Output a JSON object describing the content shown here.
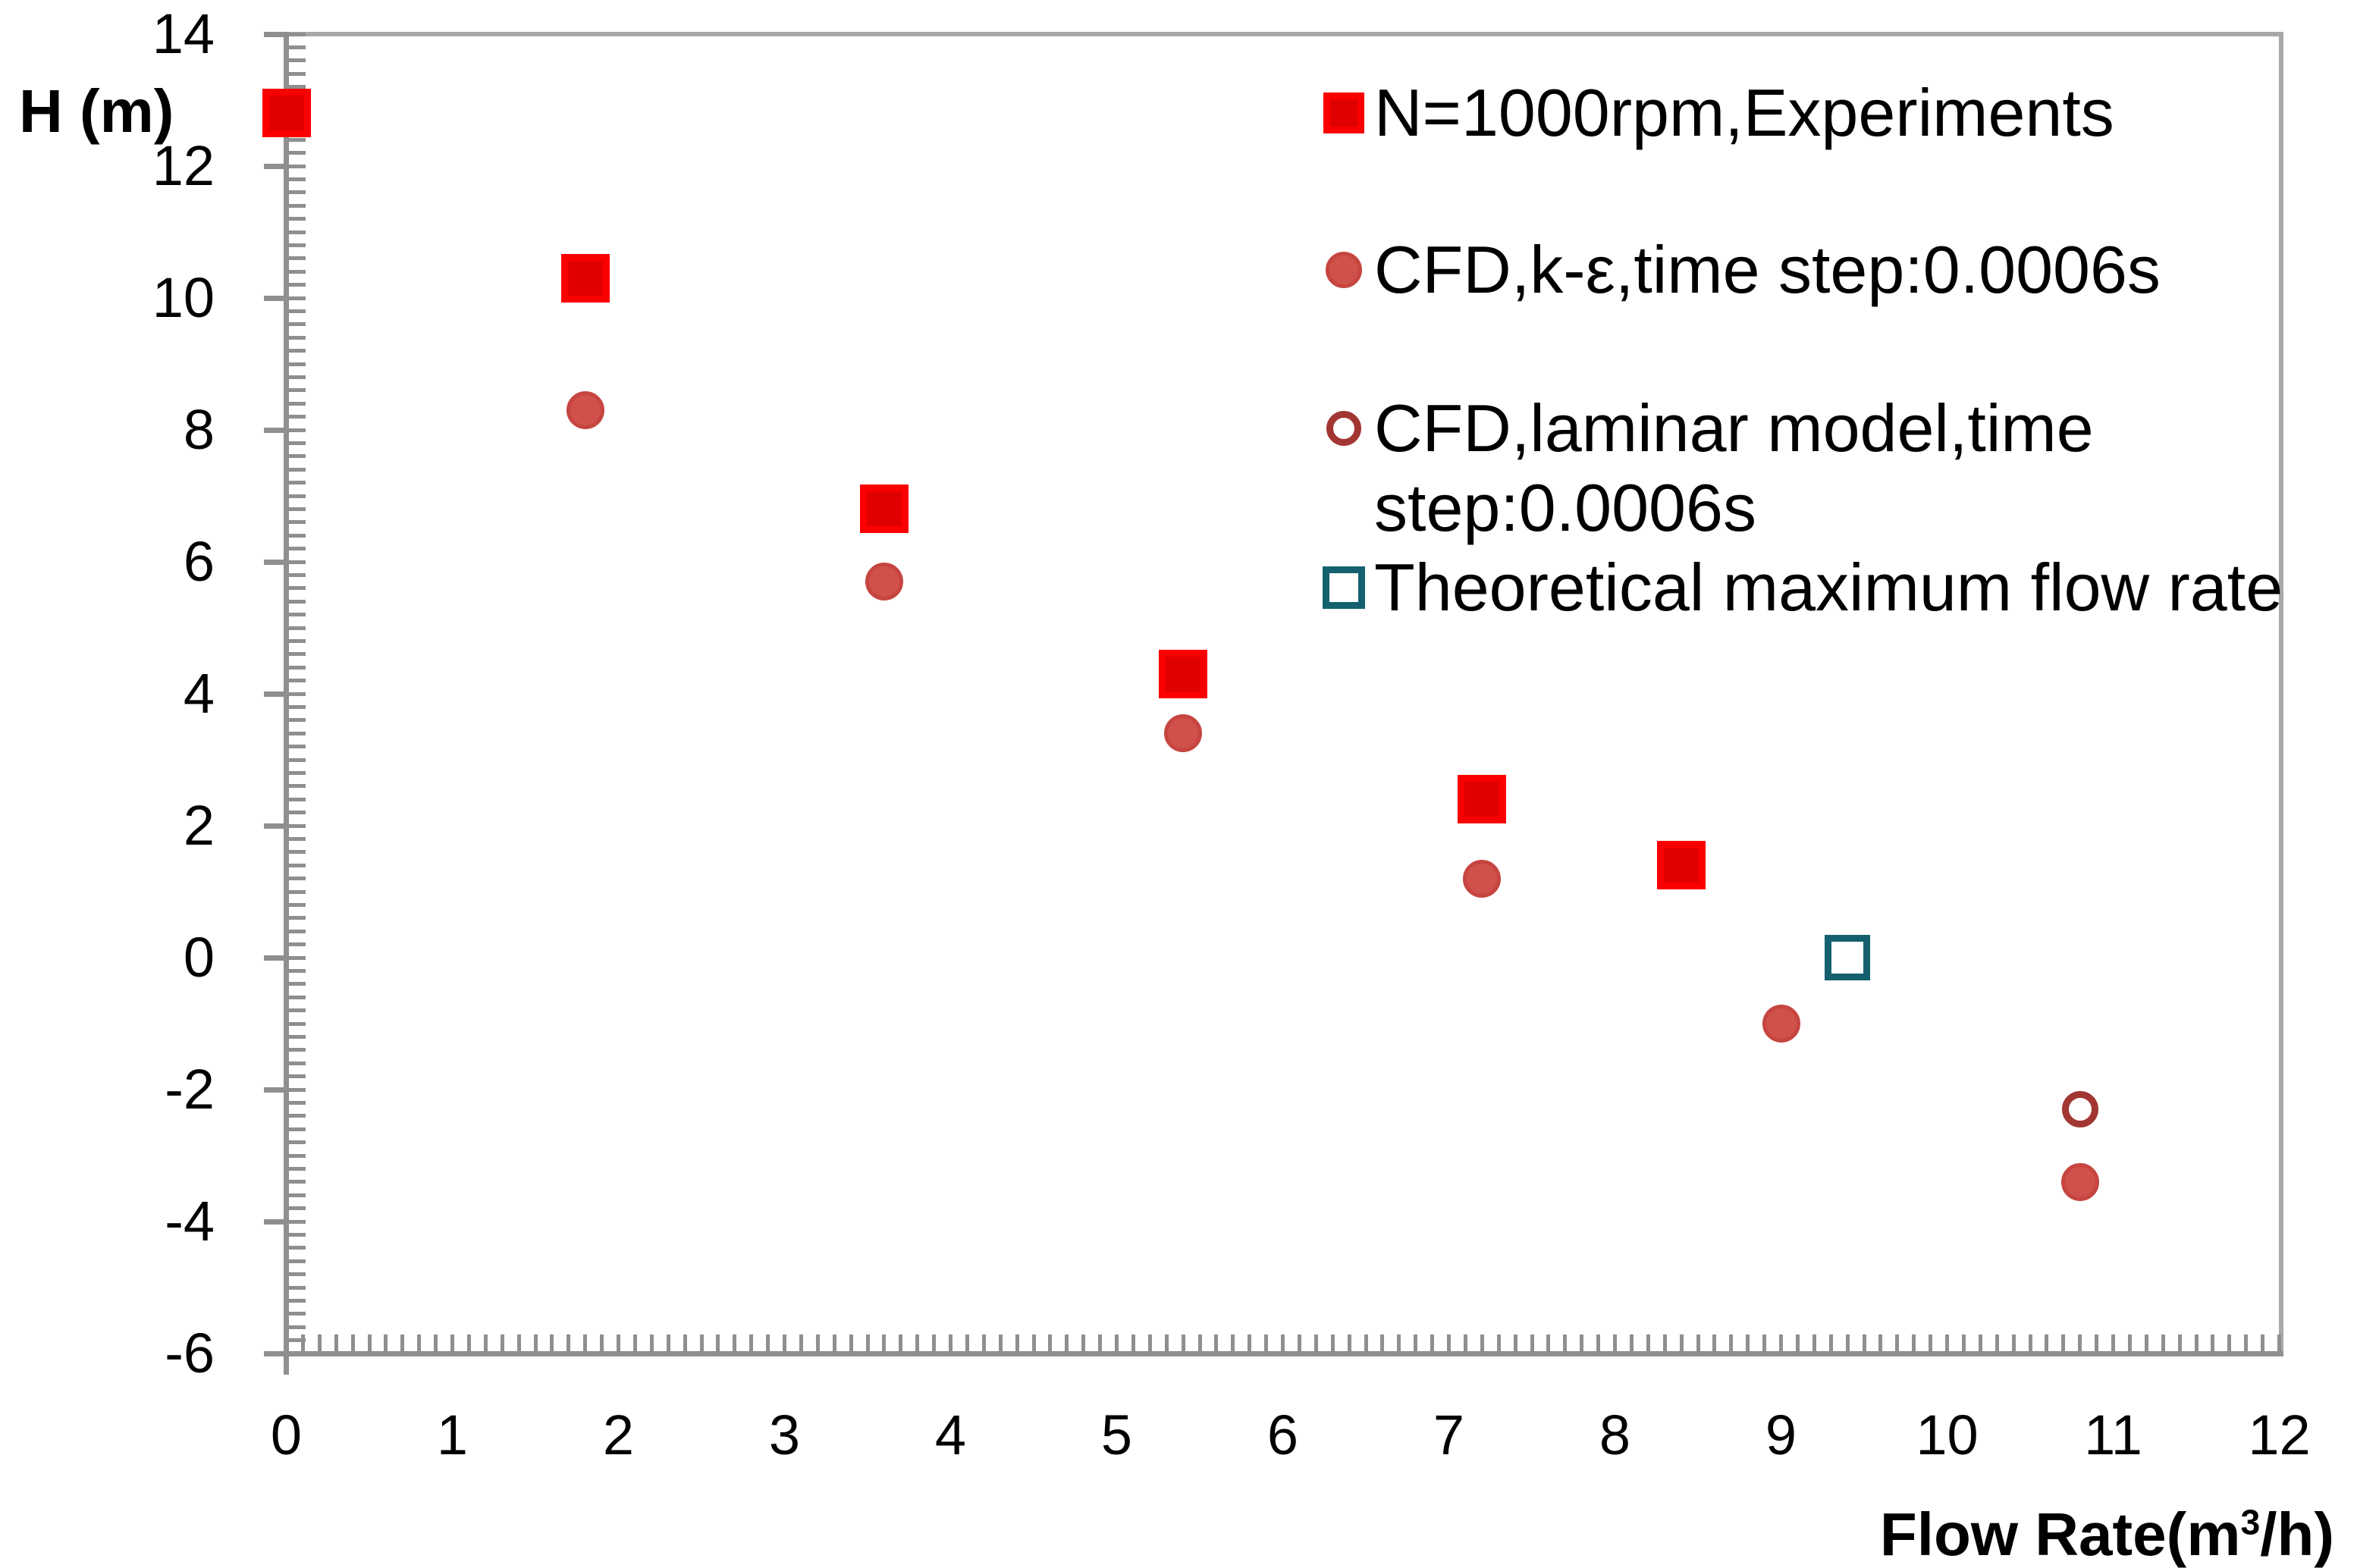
{
  "chart_data": {
    "type": "scatter",
    "title": "",
    "xlabel": "Flow Rate(m³/h)",
    "xlabel_parts": {
      "pre": "Flow Rate(m",
      "sup": "3",
      "post": "/h)"
    },
    "ylabel": "H (m)",
    "xlim": [
      0,
      12
    ],
    "ylim": [
      -6,
      14
    ],
    "x_tick_labels": [
      "0",
      "1",
      "2",
      "3",
      "4",
      "5",
      "6",
      "7",
      "8",
      "9",
      "10",
      "11",
      "12"
    ],
    "x_tick_values": [
      0,
      1,
      2,
      3,
      4,
      5,
      6,
      7,
      8,
      9,
      10,
      11,
      12
    ],
    "y_tick_labels": [
      "14",
      "12",
      "10",
      "8",
      "6",
      "4",
      "2",
      "0",
      "-2",
      "-4",
      "-6"
    ],
    "y_tick_values": [
      14,
      12,
      10,
      8,
      6,
      4,
      2,
      0,
      -2,
      -4,
      -6
    ],
    "x_minor_step": 0.1,
    "y_minor_step": 0.2,
    "grid": false,
    "legend_position": "top-right",
    "axis_color": "#8f8f8f",
    "frame_color": "#a8a8a8",
    "series": [
      {
        "name": "N=1000rpm,Experiments",
        "marker": "filled-square",
        "color": "#e10000",
        "border_color": "#fb0000",
        "points": [
          [
            0,
            12.8
          ],
          [
            1.8,
            10.3
          ],
          [
            3.6,
            6.8
          ],
          [
            5.4,
            4.3
          ],
          [
            7.2,
            2.4
          ],
          [
            8.4,
            1.4
          ]
        ]
      },
      {
        "name": "CFD,k-ε,time step:0.0006s",
        "marker": "filled-circle",
        "color": "#d0504a",
        "border_color": "#c64540",
        "points": [
          [
            1.8,
            8.3
          ],
          [
            3.6,
            5.7
          ],
          [
            5.4,
            3.4
          ],
          [
            7.2,
            1.2
          ],
          [
            9.0,
            -1.0
          ],
          [
            10.8,
            -3.4
          ]
        ]
      },
      {
        "name": "CFD,laminar model,time step:0.0006s",
        "marker": "open-circle",
        "color": "#a23632",
        "points": [
          [
            10.8,
            -2.3
          ]
        ]
      },
      {
        "name": "Theoretical maximum flow rate",
        "marker": "open-square",
        "color": "#14606f",
        "points": [
          [
            9.4,
            0.0
          ]
        ]
      }
    ]
  },
  "legend": {
    "items": [
      {
        "marker": "filled-square",
        "lines": [
          "N=1000rpm,Experiments"
        ]
      },
      {
        "marker": "filled-circle",
        "lines": [
          "CFD,k-ε,time step:0.0006s"
        ]
      },
      {
        "marker": "open-circle",
        "lines": [
          "CFD,laminar model,time",
          "step:0.0006s"
        ]
      },
      {
        "marker": "open-square",
        "lines": [
          "Theoretical maximum flow rate"
        ]
      }
    ]
  }
}
